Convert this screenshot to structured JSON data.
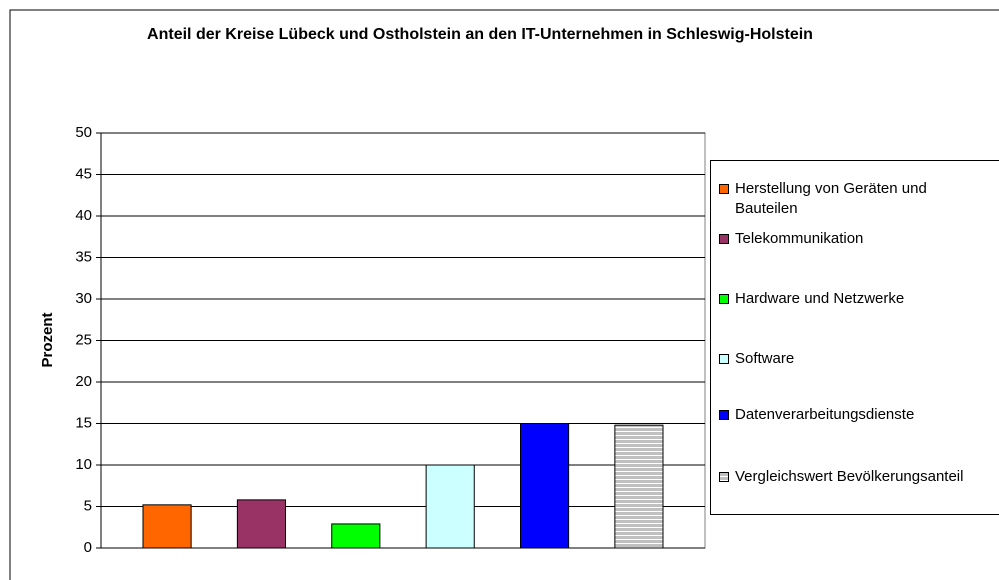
{
  "chart_data": {
    "type": "bar",
    "title": "Anteil der Kreise Lübeck und Ostholstein an den IT-Unternehmen in Schleswig-Holstein",
    "y_label": "Prozent",
    "categories": [
      null
    ],
    "series": [
      {
        "name": "Herstellung von Geräten und Bauteilen",
        "color": "#ff6600",
        "values": [
          5.2
        ]
      },
      {
        "name": "Telekommunikation",
        "color": "#993366",
        "values": [
          5.8
        ]
      },
      {
        "name": "Hardware und Netzwerke",
        "color": "#00ff00",
        "values": [
          2.9
        ]
      },
      {
        "name": "Software",
        "color": "#ccffff",
        "values": [
          10
        ]
      },
      {
        "name": "Datenverarbeitungsdienste",
        "color": "#0000ff",
        "values": [
          15
        ]
      },
      {
        "name": "Vergleichswert Bevölkerungsanteil",
        "color": "#c0c0c0",
        "pattern": "horizontal-stripes",
        "values": [
          14.8
        ]
      }
    ],
    "ylim": [
      0,
      50
    ],
    "yticks": [
      0,
      5,
      10,
      15,
      20,
      25,
      30,
      35,
      40,
      45,
      50
    ],
    "grid": true,
    "legend": "right"
  }
}
